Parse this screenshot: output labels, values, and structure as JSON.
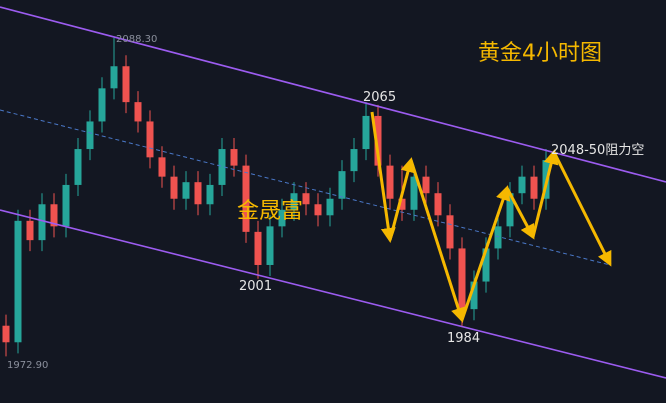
{
  "chart_data": {
    "type": "candlestick",
    "title": "黄金4小时图",
    "watermark": "金晟富",
    "up_color": "#26a69a",
    "down_color": "#ef5350",
    "ylim": [
      1956,
      2102
    ],
    "open": [
      1984,
      1978,
      2022,
      2015,
      2028,
      2020,
      2035,
      2048,
      2058,
      2070,
      2078,
      2065,
      2058,
      2045,
      2038,
      2030,
      2036,
      2028,
      2035,
      2048,
      2042,
      2018,
      2006,
      2020,
      2026,
      2032,
      2028,
      2024,
      2030,
      2040,
      2048,
      2060,
      2042,
      2030,
      2026,
      2038,
      2032,
      2024,
      2012,
      1990,
      2000,
      2012,
      2020,
      2032,
      2038,
      2030
    ],
    "high": [
      1988,
      2026,
      2026,
      2032,
      2032,
      2039,
      2052,
      2062,
      2074,
      2088.3,
      2082,
      2069,
      2062,
      2049,
      2042,
      2040,
      2040,
      2039,
      2052,
      2052,
      2046,
      2022,
      2024,
      2030,
      2036,
      2036,
      2032,
      2034,
      2044,
      2052,
      2065,
      2064,
      2046,
      2042,
      2042,
      2042,
      2036,
      2028,
      2016,
      2004,
      2016,
      2024,
      2036,
      2042,
      2042,
      2048
    ],
    "low": [
      1972.9,
      1974,
      2011,
      2011,
      2016,
      2016,
      2031,
      2044,
      2054,
      2066,
      2061,
      2054,
      2041,
      2034,
      2026,
      2026,
      2024,
      2024,
      2031,
      2038,
      2014,
      2001,
      2002,
      2016,
      2022,
      2024,
      2020,
      2020,
      2026,
      2036,
      2044,
      2038,
      2026,
      2022,
      2022,
      2028,
      2020,
      2008,
      1984,
      1986,
      1996,
      2008,
      2016,
      2028,
      2026,
      2026
    ],
    "close": [
      1978,
      2022,
      2015,
      2028,
      2020,
      2035,
      2048,
      2058,
      2070,
      2078,
      2065,
      2058,
      2045,
      2038,
      2030,
      2036,
      2028,
      2035,
      2048,
      2042,
      2018,
      2006,
      2020,
      2026,
      2032,
      2028,
      2024,
      2030,
      2040,
      2048,
      2060,
      2042,
      2030,
      2026,
      2038,
      2032,
      2024,
      2012,
      1990,
      2000,
      2012,
      2020,
      2032,
      2038,
      2030,
      2044
    ],
    "annotations": [
      "2088.30",
      "1972.90",
      "2065",
      "2001",
      "1984",
      "2048-50阻力空"
    ]
  }
}
